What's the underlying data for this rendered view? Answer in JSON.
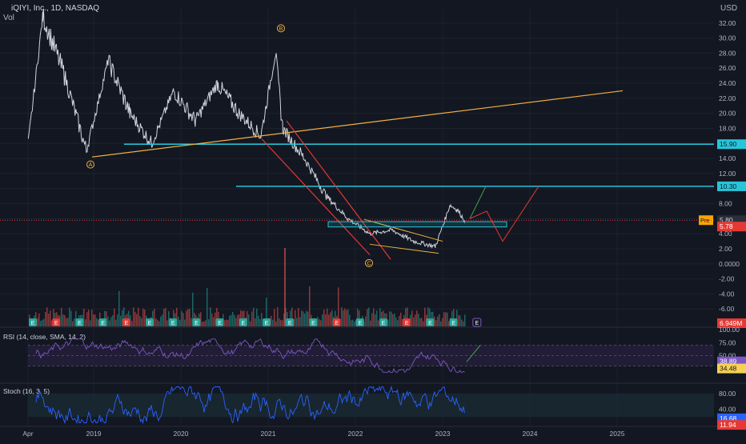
{
  "header": {
    "symbol_line": "iQIYI, Inc., 1D, NASDAQ",
    "vol_label": "Vol",
    "currency": "USD"
  },
  "colors": {
    "background": "#131722",
    "price_line": "#d1d4dc",
    "trendline_orange": "#f0b23e",
    "cyan_level": "#26c6da",
    "red_channel": "#e53935",
    "projection_green": "#43a047",
    "rsi_line": "#7e57c2",
    "rsi_band": "#2a2140",
    "volume_up": "#26a69a",
    "volume_down": "#ef5350",
    "grid": "#1e222d"
  },
  "chart_data": [
    {
      "type": "line",
      "title": "iQIYI, Inc., 1D, NASDAQ",
      "ylabel": "USD",
      "yticks": [
        "32.00",
        "30.00",
        "28.00",
        "26.00",
        "24.00",
        "22.00",
        "20.00",
        "18.00",
        "16.00",
        "14.00",
        "12.00",
        "10.00",
        "8.00",
        "6.00",
        "4.00",
        "2.00",
        "0.0000",
        "-2.00",
        "-4.00",
        "-6.00"
      ],
      "xticks": [
        "Apr",
        "2019",
        "2020",
        "2021",
        "2022",
        "2023",
        "2024",
        "2025"
      ],
      "ylim": [
        -8,
        34
      ],
      "series": [
        {
          "x": [
            "2018-04",
            "2018-06",
            "2018-09",
            "2018-12",
            "2019-03",
            "2019-06",
            "2019-09",
            "2019-12",
            "2020-03",
            "2020-06",
            "2020-09",
            "2020-12",
            "2021-02",
            "2021-03",
            "2021-06",
            "2021-09",
            "2021-12",
            "2022-03",
            "2022-06",
            "2022-09",
            "2022-12",
            "2023-01",
            "2023-02",
            "2023-03",
            "2023-04"
          ],
          "values": [
            16,
            33,
            25,
            15,
            27,
            20,
            16,
            23,
            19,
            24,
            20,
            17,
            28,
            18,
            14,
            9,
            6,
            4,
            4.5,
            3,
            2.3,
            5,
            7.8,
            7.2,
            5.8
          ]
        }
      ],
      "price_labels": {
        "pre": "Pre",
        "pre_value": "5.80",
        "last": "5.78",
        "level_upper": "15.90",
        "level_lower": "10.30",
        "volume": "6.949M"
      },
      "wave_labels": [
        "A",
        "B",
        "C"
      ],
      "horizontal_levels": [
        15.9,
        10.3
      ],
      "grid": true
    },
    {
      "type": "line",
      "title": "RSI (14, close, SMA, 14, 2)",
      "yticks": [
        "100.00",
        "75.00",
        "50.00",
        "25.00"
      ],
      "ylim": [
        0,
        100
      ],
      "last_values": [
        "38.89",
        "34.48"
      ]
    },
    {
      "type": "line",
      "title": "Stoch (16, 3, 5)",
      "yticks": [
        "80.00",
        "40.00"
      ],
      "ylim": [
        0,
        100
      ],
      "last_values": [
        "16.68",
        "11.94"
      ]
    }
  ],
  "earnings_markers": [
    "E",
    "E",
    "E",
    "E",
    "E",
    "E",
    "E",
    "E",
    "E",
    "E",
    "E",
    "E",
    "E",
    "E",
    "E",
    "E",
    "E",
    "E",
    "E",
    "E"
  ]
}
